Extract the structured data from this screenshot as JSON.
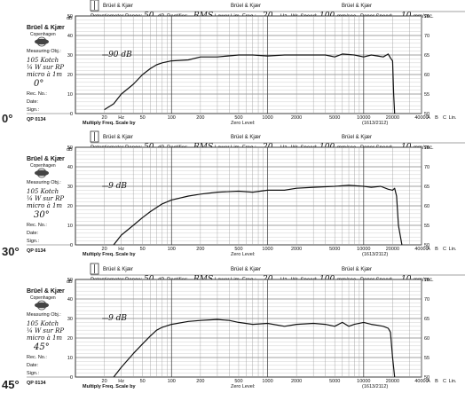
{
  "chart_data": [
    {
      "type": "line",
      "angle_label": "0°",
      "header": {
        "brand": "Brüel & Kjær",
        "potentiometer_label": "Potentiometer Range:",
        "potentiometer_value": "50",
        "db_unit": "dB",
        "rectifier_label": "Rectifier:",
        "rectifier_value": "RMS",
        "lower_lim_label": "Lower Lim. Freq.:",
        "lower_lim_value": "20",
        "hz_unit": "Hz",
        "wr_speed_label": "Wr. Speed:",
        "wr_speed_value": "100",
        "mm_unit": "mm/sec.",
        "paper_speed_label": "Paper Speed:",
        "paper_speed_value": "10"
      },
      "side": {
        "brand": "Brüel & Kjær",
        "city": "Copenhagen",
        "measuring_obj_label": "Measuring Obj.:",
        "measuring_obj_lines": [
          "105 Kotch",
          "¼ W sur RP",
          "micro à 1m"
        ],
        "angle_note": "0°",
        "rec_no_label": "Rec. No.:",
        "date_label": "Date:",
        "sign_label": "Sign.:",
        "form_no": "QP 0134"
      },
      "level_note": "90 dB",
      "footer": {
        "multiply": "Multiply Freq. Scale by",
        "zero_level": "Zero Level:",
        "part_no": "(1613/2112)"
      },
      "abc_labels": [
        "A",
        "B",
        "C",
        "Lin."
      ],
      "y_left_label": "dB",
      "y_left_ticks": [
        50,
        40,
        30,
        20,
        10,
        0
      ],
      "y_right_ticks": [
        75,
        70,
        65,
        60,
        55,
        50
      ],
      "x_ticks": [
        {
          "value": 20,
          "label": "20"
        },
        {
          "value": 50,
          "label": "50"
        },
        {
          "value": 100,
          "label": "100"
        },
        {
          "value": 200,
          "label": "200"
        },
        {
          "value": 500,
          "label": "500"
        },
        {
          "value": 1000,
          "label": "1000"
        },
        {
          "value": 2000,
          "label": "2000"
        },
        {
          "value": 5000,
          "label": "5000"
        },
        {
          "value": 10000,
          "label": "10000"
        },
        {
          "value": 20000,
          "label": "20000"
        },
        {
          "value": 40000,
          "label": "40000"
        }
      ],
      "hz_tick_label": "Hz",
      "xlim": [
        10,
        40000
      ],
      "ylim": [
        0,
        50
      ],
      "xscale": "log",
      "series": [
        {
          "x": [
            20,
            25,
            30,
            40,
            50,
            60,
            70,
            80,
            100,
            150,
            200,
            300,
            500,
            700,
            1000,
            1500,
            2000,
            3000,
            4000,
            5000,
            6000,
            8000,
            10000,
            12000,
            14000,
            16000,
            18000,
            19000,
            20000,
            20500,
            21000
          ],
          "y": [
            2,
            5,
            10,
            15,
            20,
            23,
            25,
            26,
            27,
            27.5,
            29,
            29,
            30,
            30,
            29.5,
            30,
            30,
            30,
            30,
            29,
            30.5,
            30,
            29,
            30,
            29.5,
            29,
            30.5,
            28.5,
            27,
            10,
            0
          ]
        }
      ]
    },
    {
      "type": "line",
      "angle_label": "30°",
      "header": {
        "brand": "Brüel & Kjær",
        "potentiometer_label": "Potentiometer Range:",
        "potentiometer_value": "50",
        "db_unit": "dB",
        "rectifier_label": "Rectifier:",
        "rectifier_value": "RMS",
        "lower_lim_label": "Lower Lim. Freq.:",
        "lower_lim_value": "20",
        "hz_unit": "Hz",
        "wr_speed_label": "Wr. Speed:",
        "wr_speed_value": "100",
        "mm_unit": "mm/sec.",
        "paper_speed_label": "Paper Speed:",
        "paper_speed_value": "10"
      },
      "side": {
        "brand": "Brüel & Kjær",
        "city": "Copenhagen",
        "measuring_obj_label": "Measuring Obj.:",
        "measuring_obj_lines": [
          "105 Kotch",
          "¼ W sur RP",
          "micro à 1m"
        ],
        "angle_note": "30°",
        "rec_no_label": "Rec. No.:",
        "date_label": "Date:",
        "sign_label": "Sign.:",
        "form_no": "QP 0134"
      },
      "level_note": "9 dB",
      "footer": {
        "multiply": "Multiply Freq. Scale by",
        "zero_level": "Zero Level:",
        "part_no": "(1613/2112)"
      },
      "abc_labels": [
        "A",
        "B",
        "C",
        "Lin."
      ],
      "y_left_label": "dB",
      "y_left_ticks": [
        50,
        40,
        30,
        20,
        10,
        0
      ],
      "y_right_ticks": [
        75,
        70,
        65,
        60,
        55,
        50
      ],
      "x_ticks": [
        {
          "value": 20,
          "label": "20"
        },
        {
          "value": 50,
          "label": "50"
        },
        {
          "value": 100,
          "label": "100"
        },
        {
          "value": 200,
          "label": "200"
        },
        {
          "value": 500,
          "label": "500"
        },
        {
          "value": 1000,
          "label": "1000"
        },
        {
          "value": 2000,
          "label": "2000"
        },
        {
          "value": 5000,
          "label": "5000"
        },
        {
          "value": 10000,
          "label": "10000"
        },
        {
          "value": 20000,
          "label": "20000"
        },
        {
          "value": 40000,
          "label": "40000"
        }
      ],
      "hz_tick_label": "Hz",
      "xlim": [
        10,
        40000
      ],
      "ylim": [
        0,
        50
      ],
      "xscale": "log",
      "series": [
        {
          "x": [
            25,
            30,
            40,
            50,
            60,
            80,
            100,
            150,
            200,
            300,
            500,
            700,
            1000,
            1500,
            2000,
            3000,
            5000,
            7000,
            10000,
            12000,
            15000,
            18000,
            20000,
            21000,
            22000,
            23000,
            25000
          ],
          "y": [
            0,
            5,
            10,
            14,
            17,
            21,
            23,
            25,
            26,
            27,
            27.5,
            27,
            28,
            28,
            29,
            29.5,
            30,
            30.5,
            30,
            29.5,
            30,
            28.5,
            28,
            29,
            25,
            10,
            0
          ]
        }
      ]
    },
    {
      "type": "line",
      "angle_label": "45°",
      "header": {
        "brand": "Brüel & Kjær",
        "potentiometer_label": "Potentiometer Range:",
        "potentiometer_value": "50",
        "db_unit": "dB",
        "rectifier_label": "Rectifier:",
        "rectifier_value": "RMS",
        "lower_lim_label": "Lower Lim. Freq.:",
        "lower_lim_value": "20",
        "hz_unit": "Hz",
        "wr_speed_label": "Wr. Speed:",
        "wr_speed_value": "100",
        "mm_unit": "mm/sec.",
        "paper_speed_label": "Paper Speed:",
        "paper_speed_value": "10"
      },
      "side": {
        "brand": "Brüel & Kjær",
        "city": "Copenhagen",
        "measuring_obj_label": "Measuring Obj.:",
        "measuring_obj_lines": [
          "105 Kotch",
          "¼ W sur RP",
          "micro à 1m"
        ],
        "angle_note": "45°",
        "rec_no_label": "Rec. No.:",
        "date_label": "Date:",
        "sign_label": "Sign.:",
        "form_no": "QP 0134"
      },
      "level_note": "9 dB",
      "footer": {
        "multiply": "Multiply Freq. Scale by",
        "zero_level": "Zero Level:",
        "part_no": "(1613/2112)"
      },
      "abc_labels": [
        "A",
        "B",
        "C",
        "Lin."
      ],
      "y_left_label": "dB",
      "y_left_ticks": [
        50,
        40,
        30,
        20,
        10,
        0
      ],
      "y_right_ticks": [
        75,
        70,
        65,
        60,
        55,
        50
      ],
      "x_ticks": [
        {
          "value": 20,
          "label": "20"
        },
        {
          "value": 50,
          "label": "50"
        },
        {
          "value": 100,
          "label": "100"
        },
        {
          "value": 200,
          "label": "200"
        },
        {
          "value": 500,
          "label": "500"
        },
        {
          "value": 1000,
          "label": "1000"
        },
        {
          "value": 2000,
          "label": "2000"
        },
        {
          "value": 5000,
          "label": "5000"
        },
        {
          "value": 10000,
          "label": "10000"
        },
        {
          "value": 20000,
          "label": "20000"
        },
        {
          "value": 40000,
          "label": "40000"
        }
      ],
      "hz_tick_label": "Hz",
      "xlim": [
        10,
        40000
      ],
      "ylim": [
        0,
        50
      ],
      "xscale": "log",
      "series": [
        {
          "x": [
            25,
            30,
            40,
            50,
            60,
            70,
            80,
            100,
            150,
            200,
            300,
            400,
            500,
            700,
            1000,
            1500,
            2000,
            3000,
            4000,
            5000,
            6000,
            7000,
            8000,
            10000,
            12000,
            14000,
            16000,
            18000,
            19000,
            20000,
            21000
          ],
          "y": [
            0,
            5,
            12,
            17,
            21,
            24,
            25.5,
            27,
            28.5,
            29,
            29.5,
            29,
            28,
            27,
            27.5,
            26,
            27,
            27.5,
            27,
            26,
            28,
            26,
            27,
            28,
            27,
            26.5,
            26,
            25,
            23,
            10,
            0
          ]
        }
      ]
    }
  ]
}
